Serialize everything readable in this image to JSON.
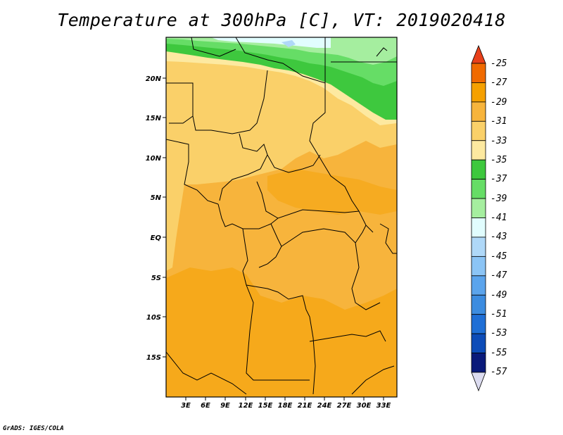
{
  "map": {
    "title": "Temperature at 300hPa [C], VT: 2019020418",
    "credit": "GrADS: IGES/COLA"
  },
  "axes": {
    "lat_labels": [
      "20N",
      "15N",
      "10N",
      "5N",
      "EQ",
      "5S",
      "10S",
      "15S"
    ],
    "lon_labels": [
      "3E",
      "6E",
      "9E",
      "12E",
      "15E",
      "18E",
      "21E",
      "24E",
      "27E",
      "30E",
      "33E"
    ]
  },
  "colorbar": {
    "labels": [
      "-25",
      "-27",
      "-29",
      "-31",
      "-33",
      "-35",
      "-37",
      "-39",
      "-41",
      "-43",
      "-45",
      "-47",
      "-49",
      "-51",
      "-53",
      "-55",
      "-57"
    ],
    "colors": [
      "#e8401a",
      "#f06a00",
      "#f5a000",
      "#f7b43c",
      "#fad069",
      "#fde9a0",
      "#3ec83e",
      "#66dd66",
      "#a5ee9f",
      "#e1fdfe",
      "#afd8f8",
      "#8bc4f5",
      "#5ba4ec",
      "#3c8ce0",
      "#1f6fd6",
      "#0d4cb8",
      "#0a1a7a",
      "#dcdcf0"
    ]
  },
  "fields": {
    "dominant_band": "-31 to -33",
    "northern_band": "-33 to -35",
    "northeast_band": "-35 to -39"
  }
}
